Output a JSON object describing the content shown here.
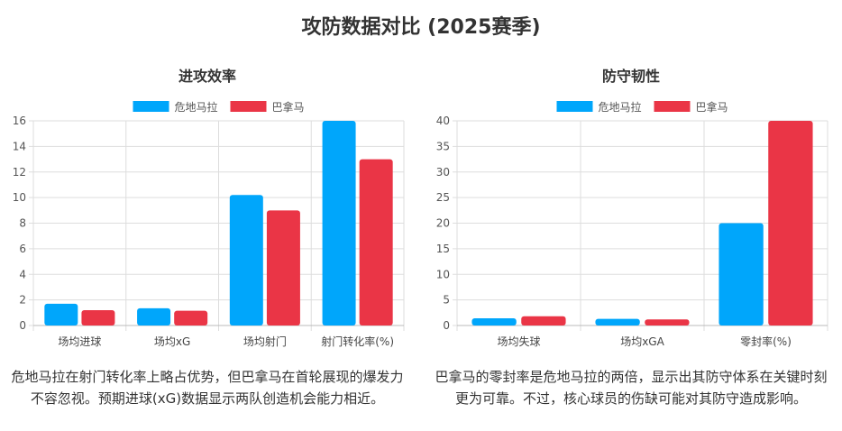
{
  "title": "攻防数据对比 (2025赛季)",
  "colors": {
    "危地马拉": "#00a6fb",
    "巴拿马": "#ea3546"
  },
  "chart_data": [
    {
      "type": "bar",
      "title": "进攻效率",
      "categories": [
        "场均进球",
        "场均xG",
        "场均射门",
        "射门转化率(%)"
      ],
      "series": [
        {
          "name": "危地马拉",
          "values": [
            1.7,
            1.35,
            10.2,
            16
          ]
        },
        {
          "name": "巴拿马",
          "values": [
            1.2,
            1.15,
            9,
            13
          ]
        }
      ],
      "ylim": [
        0,
        16
      ],
      "yticks": [
        0,
        2,
        4,
        6,
        8,
        10,
        12,
        14,
        16
      ],
      "grid": true,
      "legend": "top",
      "description": "危地马拉在射门转化率上略占优势，但巴拿马在首轮展现的爆发力不容忽视。预期进球(xG)数据显示两队创造机会能力相近。"
    },
    {
      "type": "bar",
      "title": "防守韧性",
      "categories": [
        "场均失球",
        "场均xGA",
        "零封率(%)"
      ],
      "series": [
        {
          "name": "危地马拉",
          "values": [
            1.4,
            1.3,
            20
          ]
        },
        {
          "name": "巴拿马",
          "values": [
            1.8,
            1.2,
            40
          ]
        }
      ],
      "ylim": [
        0,
        40
      ],
      "yticks": [
        0,
        5,
        10,
        15,
        20,
        25,
        30,
        35,
        40
      ],
      "grid": true,
      "legend": "top",
      "description": "巴拿马的零封率是危地马拉的两倍，显示出其防守体系在关键时刻更为可靠。不过，核心球员的伤缺可能对其防守造成影响。"
    }
  ]
}
